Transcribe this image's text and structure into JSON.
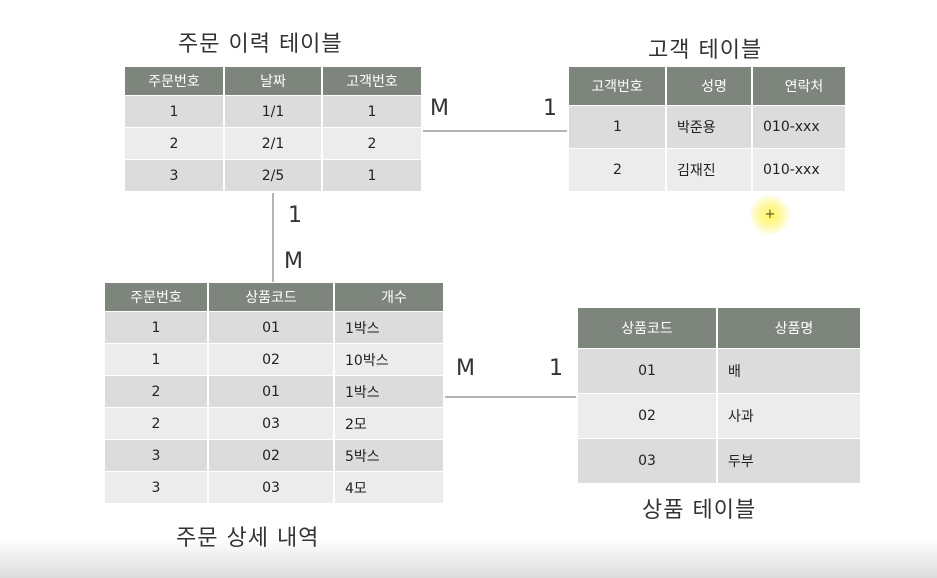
{
  "order_history": {
    "title": "주문 이력 테이블",
    "headers": [
      "주문번호",
      "날짜",
      "고객번호"
    ],
    "rows": [
      [
        "1",
        "1/1",
        "1"
      ],
      [
        "2",
        "2/1",
        "2"
      ],
      [
        "3",
        "2/5",
        "1"
      ]
    ]
  },
  "customer": {
    "title": "고객 테이블",
    "headers": [
      "고객번호",
      "성명",
      "연락처"
    ],
    "rows": [
      [
        "1",
        "박준용",
        "010-xxx"
      ],
      [
        "2",
        "김재진",
        "010-xxx"
      ]
    ]
  },
  "order_detail": {
    "title": "주문 상세 내역",
    "headers": [
      "주문번호",
      "상품코드",
      "개수"
    ],
    "rows": [
      [
        "1",
        "01",
        "1박스"
      ],
      [
        "1",
        "02",
        "10박스"
      ],
      [
        "2",
        "01",
        "1박스"
      ],
      [
        "2",
        "03",
        "2모"
      ],
      [
        "3",
        "02",
        "5박스"
      ],
      [
        "3",
        "03",
        "4모"
      ]
    ]
  },
  "product": {
    "title": "상품 테이블",
    "headers": [
      "상품코드",
      "상품명"
    ],
    "rows": [
      [
        "01",
        "배"
      ],
      [
        "02",
        "사과"
      ],
      [
        "03",
        "두부"
      ]
    ]
  },
  "relations": {
    "history_customer": {
      "from": "M",
      "to": "1"
    },
    "history_detail": {
      "from": "1",
      "to": "M"
    },
    "detail_product": {
      "from": "M",
      "to": "1"
    }
  },
  "cursor_glyph": "+"
}
